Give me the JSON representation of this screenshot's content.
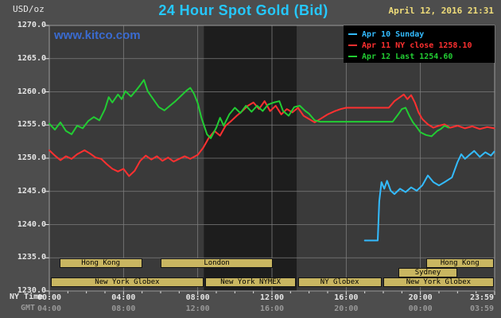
{
  "header": {
    "title": "24 Hour Spot Gold (Bid)",
    "datetime": "April 12, 2016 21:31",
    "unit": "USD/oz",
    "watermark": "www.kitco.com"
  },
  "footer": {
    "ny_time_label": "NY Time",
    "gmt_label": "GMT"
  },
  "colors": {
    "page_bg": "#4d4d4d",
    "plot_bg": "#3a3a3a",
    "band": "#1d1d1d",
    "grid": "#7d7d7d",
    "border": "#9a9a9a",
    "legend_bg": "#000000",
    "session_box_bg": "#c9b661",
    "session_box_text": "#000000",
    "title": "#25c8ff",
    "datetime": "#f0dd7a",
    "watermark": "#3a6bd0",
    "axis_text": "#e6e6e6",
    "gmt_text": "#999999"
  },
  "chart_data": {
    "type": "line",
    "title": "24 Hour Spot Gold (Bid)",
    "ylabel": "USD/oz",
    "x_range": [
      0,
      24
    ],
    "ylim": [
      1230,
      1270
    ],
    "y_tick_step": 5,
    "grid": true,
    "legend_position": "top-right",
    "dark_band_hours": [
      8.33,
      13.33
    ],
    "x_ticks": [
      {
        "h": 0,
        "ny": "00:00",
        "gmt": "04:00"
      },
      {
        "h": 4,
        "ny": "04:00",
        "gmt": "08:00"
      },
      {
        "h": 8,
        "ny": "08:00",
        "gmt": "12:00"
      },
      {
        "h": 12,
        "ny": "12:00",
        "gmt": "16:00"
      },
      {
        "h": 16,
        "ny": "16:00",
        "gmt": "20:00"
      },
      {
        "h": 20,
        "ny": "20:00",
        "gmt": "00:00"
      },
      {
        "h": 23.983,
        "ny": "23:59",
        "gmt": "03:59"
      }
    ],
    "series": [
      {
        "id": "apr10",
        "label": "Apr 10 Sunday",
        "color": "#33bbff",
        "points": [
          [
            17.0,
            1237.6
          ],
          [
            17.7,
            1237.6
          ],
          [
            17.78,
            1243.5
          ],
          [
            17.9,
            1246.4
          ],
          [
            18.05,
            1245.4
          ],
          [
            18.2,
            1246.6
          ],
          [
            18.4,
            1245.1
          ],
          [
            18.6,
            1244.6
          ],
          [
            18.9,
            1245.4
          ],
          [
            19.2,
            1244.9
          ],
          [
            19.5,
            1245.6
          ],
          [
            19.8,
            1245.1
          ],
          [
            20.1,
            1245.9
          ],
          [
            20.4,
            1247.4
          ],
          [
            20.7,
            1246.4
          ],
          [
            21.0,
            1245.9
          ],
          [
            21.3,
            1246.4
          ],
          [
            21.7,
            1247.1
          ],
          [
            22.0,
            1249.4
          ],
          [
            22.2,
            1250.6
          ],
          [
            22.4,
            1249.9
          ],
          [
            22.6,
            1250.4
          ],
          [
            22.9,
            1251.1
          ],
          [
            23.2,
            1250.2
          ],
          [
            23.5,
            1250.9
          ],
          [
            23.8,
            1250.4
          ],
          [
            23.98,
            1251.0
          ]
        ]
      },
      {
        "id": "apr11",
        "label": "Apr 11 NY close 1258.10",
        "ny_close": 1258.1,
        "color": "#ff3030",
        "points": [
          [
            0,
            1251.2
          ],
          [
            0.3,
            1250.4
          ],
          [
            0.6,
            1249.7
          ],
          [
            0.9,
            1250.3
          ],
          [
            1.2,
            1249.9
          ],
          [
            1.5,
            1250.6
          ],
          [
            1.9,
            1251.2
          ],
          [
            2.2,
            1250.7
          ],
          [
            2.5,
            1250.1
          ],
          [
            2.8,
            1249.9
          ],
          [
            3.1,
            1249.1
          ],
          [
            3.4,
            1248.4
          ],
          [
            3.7,
            1248.0
          ],
          [
            4.0,
            1248.4
          ],
          [
            4.3,
            1247.3
          ],
          [
            4.6,
            1248.1
          ],
          [
            4.9,
            1249.6
          ],
          [
            5.2,
            1250.4
          ],
          [
            5.5,
            1249.8
          ],
          [
            5.8,
            1250.3
          ],
          [
            6.1,
            1249.6
          ],
          [
            6.4,
            1250.1
          ],
          [
            6.7,
            1249.5
          ],
          [
            7.0,
            1249.9
          ],
          [
            7.3,
            1250.3
          ],
          [
            7.6,
            1249.9
          ],
          [
            8.0,
            1250.5
          ],
          [
            8.3,
            1251.6
          ],
          [
            8.6,
            1253.1
          ],
          [
            8.9,
            1254.1
          ],
          [
            9.2,
            1253.4
          ],
          [
            9.5,
            1254.9
          ],
          [
            9.8,
            1255.6
          ],
          [
            10.1,
            1256.4
          ],
          [
            10.4,
            1257.1
          ],
          [
            10.7,
            1257.9
          ],
          [
            11.0,
            1258.4
          ],
          [
            11.3,
            1257.4
          ],
          [
            11.6,
            1258.6
          ],
          [
            11.9,
            1257.1
          ],
          [
            12.2,
            1257.9
          ],
          [
            12.5,
            1256.6
          ],
          [
            12.8,
            1257.4
          ],
          [
            13.1,
            1256.9
          ],
          [
            13.4,
            1257.6
          ],
          [
            13.7,
            1256.4
          ],
          [
            14.0,
            1255.9
          ],
          [
            14.3,
            1255.4
          ],
          [
            14.6,
            1255.9
          ],
          [
            15.0,
            1256.6
          ],
          [
            15.4,
            1257.1
          ],
          [
            15.7,
            1257.4
          ],
          [
            16.0,
            1257.6
          ],
          [
            18.3,
            1257.6
          ],
          [
            18.6,
            1258.6
          ],
          [
            18.9,
            1259.2
          ],
          [
            19.1,
            1259.6
          ],
          [
            19.3,
            1258.9
          ],
          [
            19.5,
            1259.5
          ],
          [
            19.7,
            1258.4
          ],
          [
            19.9,
            1256.9
          ],
          [
            20.1,
            1255.9
          ],
          [
            20.4,
            1255.1
          ],
          [
            20.7,
            1254.6
          ],
          [
            21.0,
            1254.9
          ],
          [
            21.3,
            1255.1
          ],
          [
            21.6,
            1254.6
          ],
          [
            22.0,
            1254.9
          ],
          [
            22.4,
            1254.5
          ],
          [
            22.8,
            1254.8
          ],
          [
            23.2,
            1254.4
          ],
          [
            23.6,
            1254.7
          ],
          [
            23.98,
            1254.5
          ]
        ]
      },
      {
        "id": "apr12",
        "label": "Apr 12 Last 1254.60",
        "last": 1254.6,
        "color": "#22cc33",
        "points": [
          [
            0,
            1255.2
          ],
          [
            0.3,
            1254.3
          ],
          [
            0.6,
            1255.4
          ],
          [
            0.9,
            1254.1
          ],
          [
            1.2,
            1253.6
          ],
          [
            1.5,
            1254.9
          ],
          [
            1.8,
            1254.5
          ],
          [
            2.1,
            1255.6
          ],
          [
            2.4,
            1256.2
          ],
          [
            2.7,
            1255.7
          ],
          [
            3.0,
            1257.4
          ],
          [
            3.2,
            1259.2
          ],
          [
            3.4,
            1258.4
          ],
          [
            3.7,
            1259.6
          ],
          [
            3.9,
            1258.9
          ],
          [
            4.1,
            1260.1
          ],
          [
            4.4,
            1259.3
          ],
          [
            4.7,
            1260.3
          ],
          [
            4.9,
            1261.0
          ],
          [
            5.1,
            1261.8
          ],
          [
            5.3,
            1260.1
          ],
          [
            5.6,
            1258.9
          ],
          [
            5.9,
            1257.7
          ],
          [
            6.2,
            1257.2
          ],
          [
            6.5,
            1257.9
          ],
          [
            6.8,
            1258.6
          ],
          [
            7.1,
            1259.4
          ],
          [
            7.4,
            1260.2
          ],
          [
            7.6,
            1260.6
          ],
          [
            7.8,
            1259.7
          ],
          [
            8.0,
            1258.3
          ],
          [
            8.2,
            1256.1
          ],
          [
            8.5,
            1253.6
          ],
          [
            8.7,
            1253.0
          ],
          [
            9.0,
            1254.6
          ],
          [
            9.2,
            1256.1
          ],
          [
            9.4,
            1254.9
          ],
          [
            9.7,
            1256.6
          ],
          [
            10.0,
            1257.6
          ],
          [
            10.3,
            1256.8
          ],
          [
            10.6,
            1257.9
          ],
          [
            10.9,
            1257.0
          ],
          [
            11.2,
            1257.9
          ],
          [
            11.5,
            1257.1
          ],
          [
            11.8,
            1258.1
          ],
          [
            12.1,
            1258.4
          ],
          [
            12.4,
            1258.6
          ],
          [
            12.6,
            1257.1
          ],
          [
            12.9,
            1256.4
          ],
          [
            13.2,
            1257.7
          ],
          [
            13.5,
            1257.9
          ],
          [
            13.8,
            1257.1
          ],
          [
            14.0,
            1256.7
          ],
          [
            14.3,
            1255.7
          ],
          [
            14.6,
            1255.5
          ],
          [
            18.5,
            1255.5
          ],
          [
            18.8,
            1256.6
          ],
          [
            19.0,
            1257.4
          ],
          [
            19.2,
            1257.6
          ],
          [
            19.4,
            1256.4
          ],
          [
            19.6,
            1255.4
          ],
          [
            19.8,
            1254.7
          ],
          [
            20.0,
            1253.9
          ],
          [
            20.3,
            1253.5
          ],
          [
            20.6,
            1253.3
          ],
          [
            20.9,
            1254.1
          ],
          [
            21.1,
            1254.4
          ],
          [
            21.3,
            1254.9
          ],
          [
            21.52,
            1254.6
          ]
        ]
      }
    ],
    "sessions": [
      {
        "label": "Hong Kong",
        "row": 0,
        "start": 0.55,
        "end": 5.0
      },
      {
        "label": "London",
        "row": 0,
        "start": 6.0,
        "end": 12.05
      },
      {
        "label": "Hong Kong",
        "row": 0,
        "start": 20.3,
        "end": 23.95
      },
      {
        "label": "Sydney",
        "row": 1,
        "start": 18.8,
        "end": 22.0
      },
      {
        "label": "New York Globex",
        "row": 2,
        "start": 0.1,
        "end": 8.3
      },
      {
        "label": "New York NYMEX",
        "row": 2,
        "start": 8.4,
        "end": 13.3
      },
      {
        "label": "NY Globex",
        "row": 2,
        "start": 13.4,
        "end": 17.9
      },
      {
        "label": "New York Globex",
        "row": 2,
        "start": 18.0,
        "end": 23.95
      }
    ]
  }
}
